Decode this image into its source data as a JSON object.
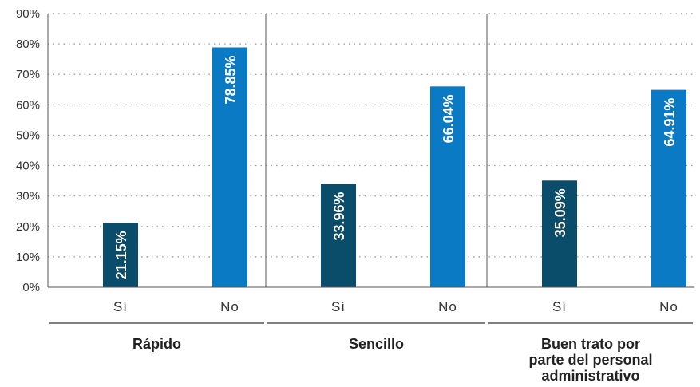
{
  "chart_data": {
    "type": "bar",
    "ylim": [
      0,
      90
    ],
    "yticks": [
      0,
      10,
      20,
      30,
      40,
      50,
      60,
      70,
      80,
      90
    ],
    "ytick_labels": [
      "0%",
      "10%",
      "20%",
      "30%",
      "40%",
      "50%",
      "60%",
      "70%",
      "80%",
      "90%"
    ],
    "grid": "dotted-horizontal",
    "colors": {
      "Sí": "#0a4d6b",
      "No": "#0a7ac4"
    },
    "groups": [
      {
        "name": "Rápido",
        "categories": [
          "Sí",
          "No"
        ],
        "values": [
          21.15,
          78.85
        ],
        "labels": [
          "21.15%",
          "78.85%"
        ]
      },
      {
        "name": "Sencillo",
        "categories": [
          "Sí",
          "No"
        ],
        "values": [
          33.96,
          66.04
        ],
        "labels": [
          "33.96%",
          "66.04%"
        ]
      },
      {
        "name": "Buen trato por parte del personal administrativo",
        "name_lines": [
          "Buen trato por",
          "parte del personal",
          "administrativo"
        ],
        "categories": [
          "Sí",
          "No"
        ],
        "values": [
          35.09,
          64.91
        ],
        "labels": [
          "35.09%",
          "64.91%"
        ]
      }
    ]
  }
}
